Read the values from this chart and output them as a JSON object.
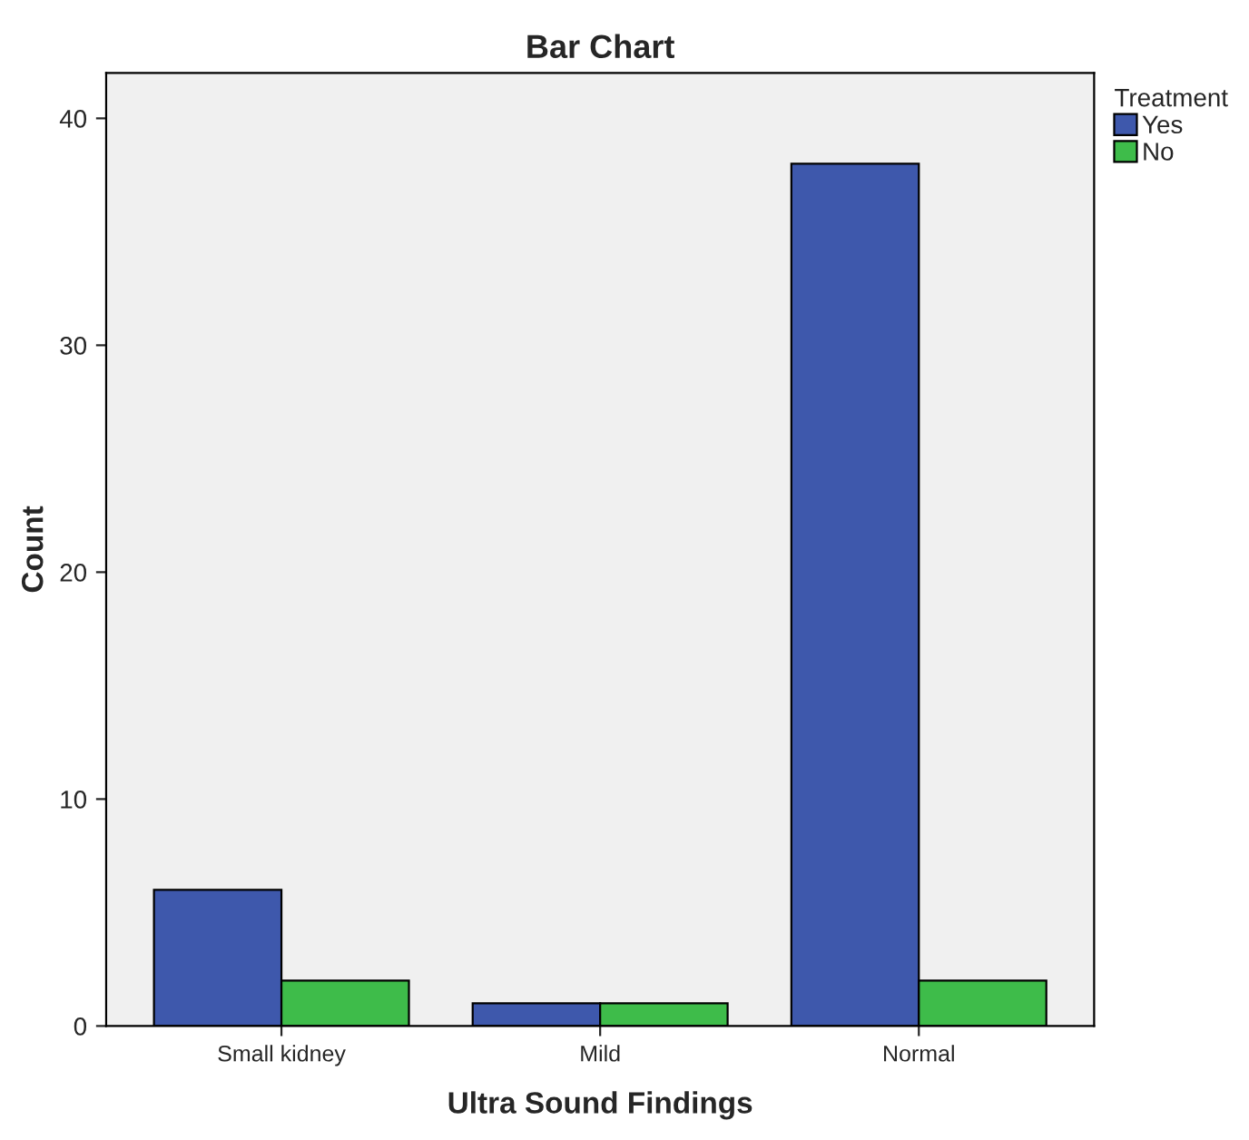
{
  "chart_data": {
    "type": "bar",
    "title": "Bar Chart",
    "xlabel": "Ultra Sound Findings",
    "ylabel": "Count",
    "legend_title": "Treatment",
    "categories": [
      "Small kidney",
      "Mild",
      "Normal"
    ],
    "series": [
      {
        "name": "Yes",
        "color": "#3e58ac",
        "values": [
          6,
          1,
          38
        ]
      },
      {
        "name": "No",
        "color": "#3ebc4a",
        "values": [
          2,
          1,
          2
        ]
      }
    ],
    "ylim": [
      0,
      42
    ],
    "yticks": [
      0,
      10,
      20,
      30,
      40
    ],
    "grid": false,
    "legend": "top right"
  }
}
